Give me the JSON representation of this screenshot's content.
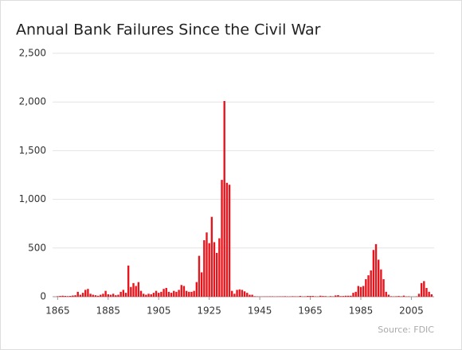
{
  "chart_data": {
    "type": "bar",
    "title": "Annual Bank Failures Since the Civil War",
    "x": [
      1865,
      1866,
      1867,
      1868,
      1869,
      1870,
      1871,
      1872,
      1873,
      1874,
      1875,
      1876,
      1877,
      1878,
      1879,
      1880,
      1881,
      1882,
      1883,
      1884,
      1885,
      1886,
      1887,
      1888,
      1889,
      1890,
      1891,
      1892,
      1893,
      1894,
      1895,
      1896,
      1897,
      1898,
      1899,
      1900,
      1901,
      1902,
      1903,
      1904,
      1905,
      1906,
      1907,
      1908,
      1909,
      1910,
      1911,
      1912,
      1913,
      1914,
      1915,
      1916,
      1917,
      1918,
      1919,
      1920,
      1921,
      1922,
      1923,
      1924,
      1925,
      1926,
      1927,
      1928,
      1929,
      1930,
      1931,
      1932,
      1933,
      1934,
      1935,
      1936,
      1937,
      1938,
      1939,
      1940,
      1941,
      1942,
      1943,
      1944,
      1945,
      1946,
      1947,
      1948,
      1949,
      1950,
      1951,
      1952,
      1953,
      1954,
      1955,
      1956,
      1957,
      1958,
      1959,
      1960,
      1961,
      1962,
      1963,
      1964,
      1965,
      1966,
      1967,
      1968,
      1969,
      1970,
      1971,
      1972,
      1973,
      1974,
      1975,
      1976,
      1977,
      1978,
      1979,
      1980,
      1981,
      1982,
      1983,
      1984,
      1985,
      1986,
      1987,
      1988,
      1989,
      1990,
      1991,
      1992,
      1993,
      1994,
      1995,
      1996,
      1997,
      1998,
      1999,
      2000,
      2001,
      2002,
      2003,
      2004,
      2005,
      2006,
      2007,
      2008,
      2009,
      2010,
      2011,
      2012,
      2013
    ],
    "values": [
      5,
      8,
      10,
      8,
      6,
      8,
      12,
      15,
      50,
      20,
      40,
      70,
      80,
      30,
      20,
      15,
      10,
      20,
      30,
      60,
      25,
      20,
      30,
      15,
      20,
      50,
      70,
      40,
      320,
      100,
      140,
      110,
      150,
      60,
      30,
      20,
      30,
      25,
      40,
      60,
      40,
      50,
      80,
      90,
      50,
      40,
      60,
      50,
      70,
      120,
      110,
      60,
      50,
      50,
      60,
      150,
      420,
      250,
      580,
      660,
      550,
      820,
      560,
      450,
      600,
      1200,
      2010,
      1170,
      1150,
      60,
      30,
      70,
      75,
      70,
      55,
      40,
      20,
      20,
      5,
      3,
      2,
      2,
      3,
      3,
      4,
      4,
      2,
      3,
      4,
      4,
      5,
      3,
      3,
      5,
      4,
      3,
      8,
      3,
      4,
      8,
      8,
      8,
      4,
      3,
      10,
      7,
      6,
      1,
      6,
      4,
      13,
      16,
      6,
      7,
      10,
      10,
      10,
      40,
      50,
      110,
      100,
      110,
      180,
      220,
      270,
      480,
      540,
      380,
      280,
      180,
      50,
      20,
      5,
      3,
      5,
      7,
      4,
      11,
      3,
      4,
      0,
      0,
      3,
      30,
      140,
      160,
      90,
      50,
      25
    ],
    "color": "#e8141c",
    "xlim": [
      1863,
      2014
    ],
    "xticks": [
      1865,
      1885,
      1905,
      1925,
      1945,
      1965,
      1985,
      2005
    ],
    "ylim": [
      0,
      2500
    ],
    "yticks": [
      0,
      {
        "value": 500,
        "label": "500"
      },
      {
        "value": 1000,
        "label": "1,000"
      },
      {
        "value": 1500,
        "label": "1,500"
      },
      {
        "value": 2000,
        "label": "2,000"
      },
      {
        "value": 2500,
        "label": "2,500"
      }
    ],
    "grid": true,
    "source": "Source: FDIC"
  }
}
